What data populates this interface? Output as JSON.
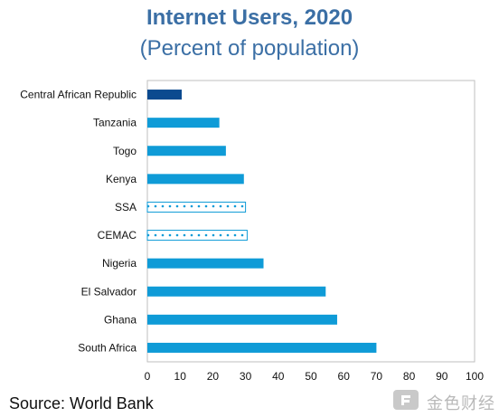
{
  "chart_data": {
    "type": "bar",
    "orientation": "horizontal",
    "title": "Internet Users, 2020",
    "subtitle": "(Percent of population)",
    "categories": [
      "Central African Republic",
      "Tanzania",
      "Togo",
      "Kenya",
      "SSA",
      "CEMAC",
      "Nigeria",
      "El Salvador",
      "Ghana",
      "South Africa"
    ],
    "values": [
      10.5,
      22,
      24,
      29.5,
      30,
      30.5,
      35.5,
      54.5,
      58,
      70
    ],
    "bar_styles": [
      "highlight",
      "normal",
      "normal",
      "normal",
      "dotted",
      "dotted",
      "normal",
      "normal",
      "normal",
      "normal"
    ],
    "xlim": [
      0,
      100
    ],
    "xticks": [
      "0",
      "10",
      "20",
      "30",
      "40",
      "50",
      "60",
      "70",
      "80",
      "90",
      "100"
    ],
    "grid": false,
    "colors": {
      "normal": "#0f9bd7",
      "highlight": "#0b4a8f",
      "dotted_border": "#0f9bd7",
      "title": "#3b6fa5"
    }
  },
  "source": "Source: World Bank",
  "watermark": {
    "text": "金色财经",
    "icon": "jinse-logo-icon"
  }
}
